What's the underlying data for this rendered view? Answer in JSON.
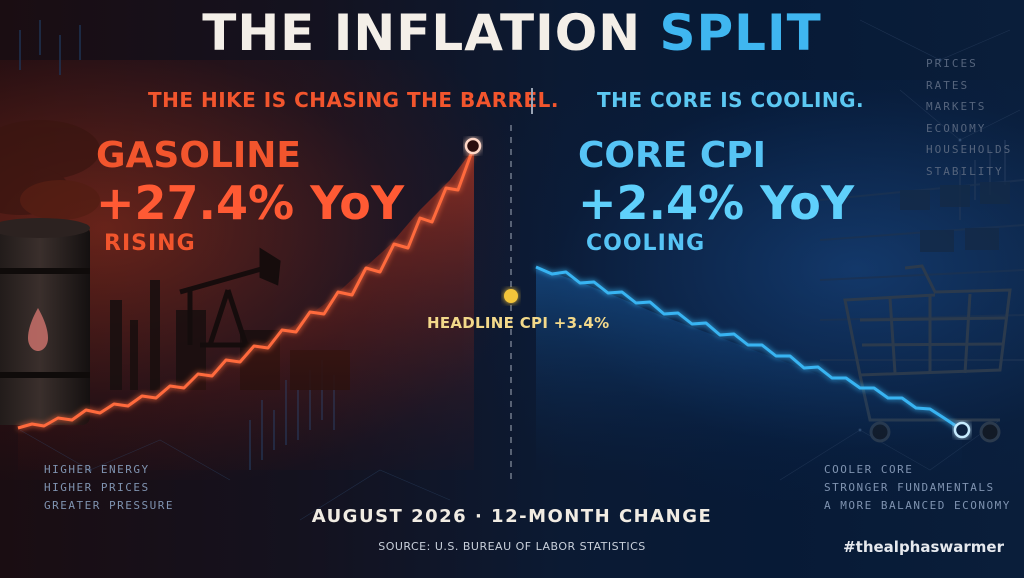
{
  "title": {
    "part1": "THE INFLATION",
    "part2": "SPLIT"
  },
  "subtitle": {
    "left": "THE HIKE IS CHASING THE BARREL.",
    "right": "THE CORE IS COOLING."
  },
  "gasoline": {
    "name": "GASOLINE",
    "value": "+27.4% YoY",
    "status": "RISING"
  },
  "core_cpi": {
    "name": "CORE CPI",
    "value": "+2.4% YoY",
    "status": "COOLING"
  },
  "headline": {
    "label": "HEADLINE CPI +3.4%"
  },
  "left_notes": [
    "HIGHER ENERGY",
    "HIGHER PRICES",
    "GREATER PRESSURE"
  ],
  "right_notes": [
    "COOLER CORE",
    "STRONGER FUNDAMENTALS",
    "A MORE BALANCED ECONOMY"
  ],
  "side_words": [
    "PRICES",
    "RATES",
    "MARKETS",
    "ECONOMY",
    "HOUSEHOLDS",
    "STABILITY"
  ],
  "footer": {
    "date": "AUGUST 2026 · 12-MONTH CHANGE",
    "source": "SOURCE: U.S. BUREAU OF LABOR STATISTICS",
    "hashtag": "#thealphaswarmer"
  },
  "colors": {
    "orange": "#ff5a34",
    "blue": "#3fb6f0",
    "gold": "#f3c53a",
    "background": "#07152b"
  },
  "icons": [
    "oil-barrel-icon",
    "oil-drop-icon",
    "pump-jack-icon",
    "shopping-cart-icon"
  ]
}
